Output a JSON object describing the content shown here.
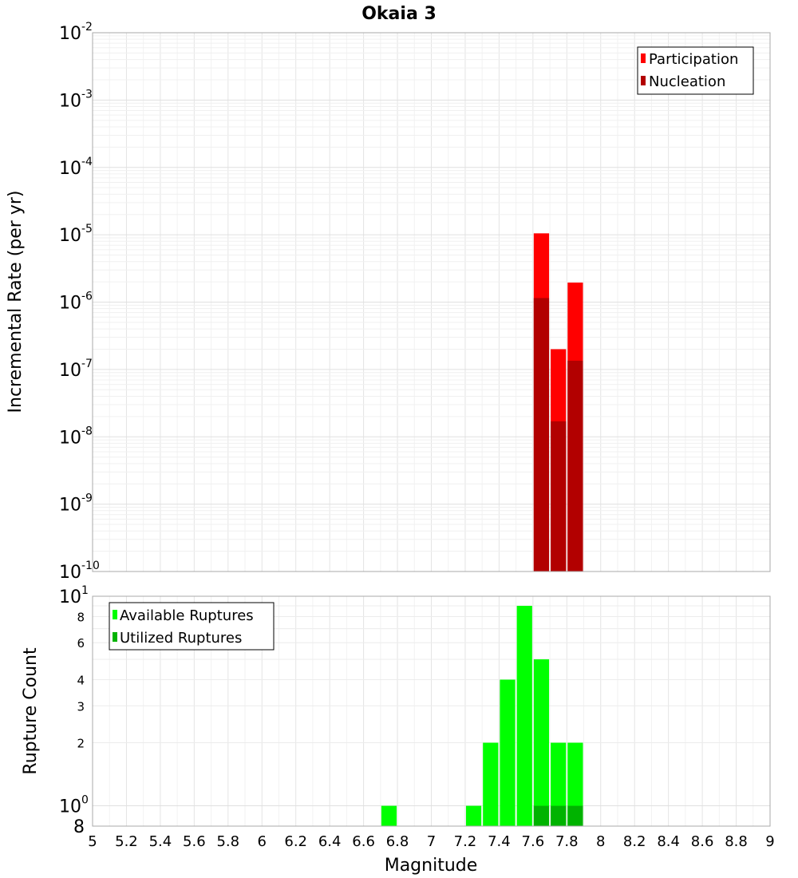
{
  "chart_data": [
    {
      "type": "bar",
      "title": "Okaia 3",
      "ylabel": "Incremental Rate (per yr)",
      "xlabel": "",
      "yscale": "log",
      "ylim": [
        1e-10,
        0.01
      ],
      "xlim": [
        5,
        9
      ],
      "grid": true,
      "legend_position": "top-right",
      "bin_width": 0.1,
      "y_ticks": [
        {
          "base": "10",
          "exp": "-2"
        },
        {
          "base": "10",
          "exp": "-3"
        },
        {
          "base": "10",
          "exp": "-4"
        },
        {
          "base": "10",
          "exp": "-5"
        },
        {
          "base": "10",
          "exp": "-6"
        },
        {
          "base": "10",
          "exp": "-7"
        },
        {
          "base": "10",
          "exp": "-8"
        },
        {
          "base": "10",
          "exp": "-9"
        },
        {
          "base": "10",
          "exp": "-10"
        }
      ],
      "series": [
        {
          "name": "Participation",
          "color": "#ff0000",
          "x": [
            7.65,
            7.75,
            7.85
          ],
          "values": [
            1.05e-05,
            2e-07,
            1.95e-06
          ]
        },
        {
          "name": "Nucleation",
          "color": "#b20000",
          "x": [
            7.65,
            7.75,
            7.85
          ],
          "values": [
            1.15e-06,
            1.7e-08,
            1.35e-07
          ]
        }
      ]
    },
    {
      "type": "bar",
      "ylabel": "Rupture Count",
      "xlabel": "Magnitude",
      "yscale": "log",
      "ylim": [
        0.8,
        10
      ],
      "xlim": [
        5,
        9
      ],
      "grid": true,
      "legend_position": "top-left",
      "bin_width": 0.1,
      "y_ticks": [
        {
          "value": 10,
          "base": "10",
          "exp": "1"
        },
        {
          "value": 8,
          "label": "8"
        },
        {
          "value": 6,
          "label": "6"
        },
        {
          "value": 4,
          "label": "4"
        },
        {
          "value": 3,
          "label": "3"
        },
        {
          "value": 2,
          "label": "2"
        },
        {
          "value": 1,
          "base": "10",
          "exp": "0"
        },
        {
          "value": 0.8,
          "label": "8"
        }
      ],
      "x_ticks": [
        "5",
        "5.2",
        "5.4",
        "5.6",
        "5.8",
        "6",
        "6.2",
        "6.4",
        "6.6",
        "6.8",
        "7",
        "7.2",
        "7.4",
        "7.6",
        "7.8",
        "8",
        "8.2",
        "8.4",
        "8.6",
        "8.8",
        "9"
      ],
      "series": [
        {
          "name": "Available Ruptures",
          "color": "#00ff00",
          "x": [
            6.75,
            7.25,
            7.35,
            7.45,
            7.55,
            7.65,
            7.75,
            7.85
          ],
          "values": [
            1,
            1,
            2,
            4,
            9,
            5,
            2,
            2
          ]
        },
        {
          "name": "Utilized Ruptures",
          "color": "#00b300",
          "x": [
            7.65,
            7.75,
            7.85
          ],
          "values": [
            1,
            1,
            1
          ]
        }
      ]
    }
  ]
}
